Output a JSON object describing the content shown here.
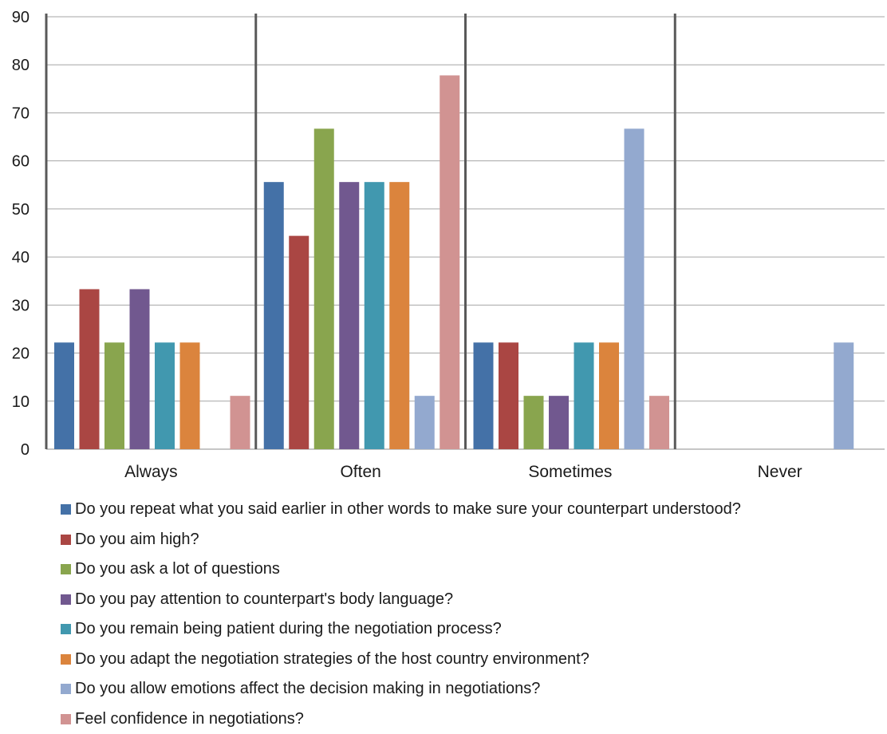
{
  "chart_data": {
    "type": "bar",
    "title": "",
    "xlabel": "",
    "ylabel": "",
    "ylim": [
      0,
      90
    ],
    "yticks": [
      0,
      10,
      20,
      30,
      40,
      50,
      60,
      70,
      80,
      90
    ],
    "grid": true,
    "legend_position": "bottom",
    "categories": [
      "Always",
      "Often",
      "Sometimes",
      "Never"
    ],
    "series": [
      {
        "name": "Do you repeat what you said earlier in other words to make sure your counterpart understood?",
        "color": "#4471a7",
        "values": [
          22.2,
          55.6,
          22.2,
          0
        ]
      },
      {
        "name": "Do you aim high?",
        "color": "#aa4643",
        "values": [
          33.3,
          44.4,
          22.2,
          0
        ]
      },
      {
        "name": "Do you ask a lot of questions",
        "color": "#89a54e",
        "values": [
          22.2,
          66.7,
          11.1,
          0
        ]
      },
      {
        "name": "Do you pay attention to counterpart's body language?",
        "color": "#71588f",
        "values": [
          33.3,
          55.6,
          11.1,
          0
        ]
      },
      {
        "name": "Do you remain being patient during the negotiation process?",
        "color": "#4198af",
        "values": [
          22.2,
          55.6,
          22.2,
          0
        ]
      },
      {
        "name": "Do you adapt the negotiation strategies of the host country environment?",
        "color": "#db843d",
        "values": [
          22.2,
          55.6,
          22.2,
          0
        ]
      },
      {
        "name": "Do you allow emotions affect the decision making in negotiations?",
        "color": "#93a9cf",
        "values": [
          0,
          11.1,
          66.7,
          22.2
        ]
      },
      {
        "name": "Feel confidence in negotiations?",
        "color": "#d19392",
        "values": [
          11.1,
          77.8,
          11.1,
          0
        ]
      }
    ]
  }
}
